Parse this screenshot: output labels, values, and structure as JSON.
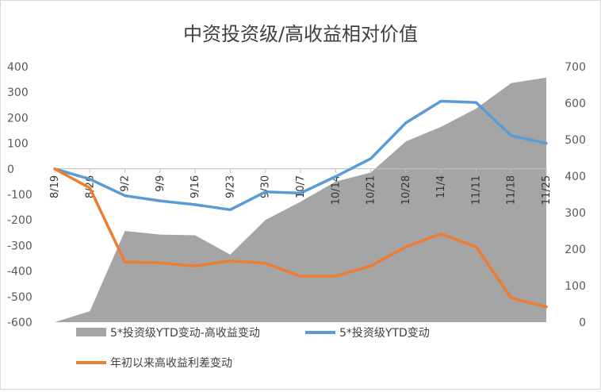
{
  "chart_data": {
    "type": "line",
    "title": "中资投资级/高收益相对价值",
    "categories": [
      "8/19",
      "8/26",
      "9/2",
      "9/9",
      "9/16",
      "9/23",
      "9/30",
      "10/7",
      "10/14",
      "10/21",
      "10/28",
      "11/4",
      "11/11",
      "11/18",
      "11/25"
    ],
    "left_axis": {
      "ylim": [
        -600,
        400
      ],
      "ticks": [
        "400",
        "300",
        "200",
        "100",
        "0",
        "-100",
        "-200",
        "-300",
        "-400",
        "-500",
        "-600"
      ]
    },
    "right_axis": {
      "ylim": [
        0,
        700
      ],
      "ticks": [
        "700",
        "600",
        "500",
        "400",
        "300",
        "200",
        "100",
        "0"
      ]
    },
    "grid": false,
    "legend_position": "bottom",
    "series": [
      {
        "name": "5*投资级YTD变动-高收益变动",
        "kind": "area",
        "axis": "right",
        "color": "#a5a5a5",
        "values": [
          0,
          30,
          250,
          240,
          238,
          185,
          280,
          330,
          385,
          410,
          495,
          535,
          585,
          655,
          670
        ]
      },
      {
        "name": "5*投资级YTD变动",
        "kind": "line",
        "axis": "left",
        "color": "#5b9bd5",
        "values": [
          0,
          -40,
          -105,
          -125,
          -140,
          -160,
          -90,
          -95,
          -30,
          40,
          180,
          265,
          260,
          130,
          100
        ]
      },
      {
        "name": "年初以来高收益利差变动",
        "kind": "line",
        "axis": "left",
        "color": "#ed7d31",
        "values": [
          0,
          -75,
          -365,
          -368,
          -380,
          -360,
          -370,
          -420,
          -420,
          -380,
          -305,
          -255,
          -305,
          -505,
          -540
        ]
      }
    ]
  }
}
